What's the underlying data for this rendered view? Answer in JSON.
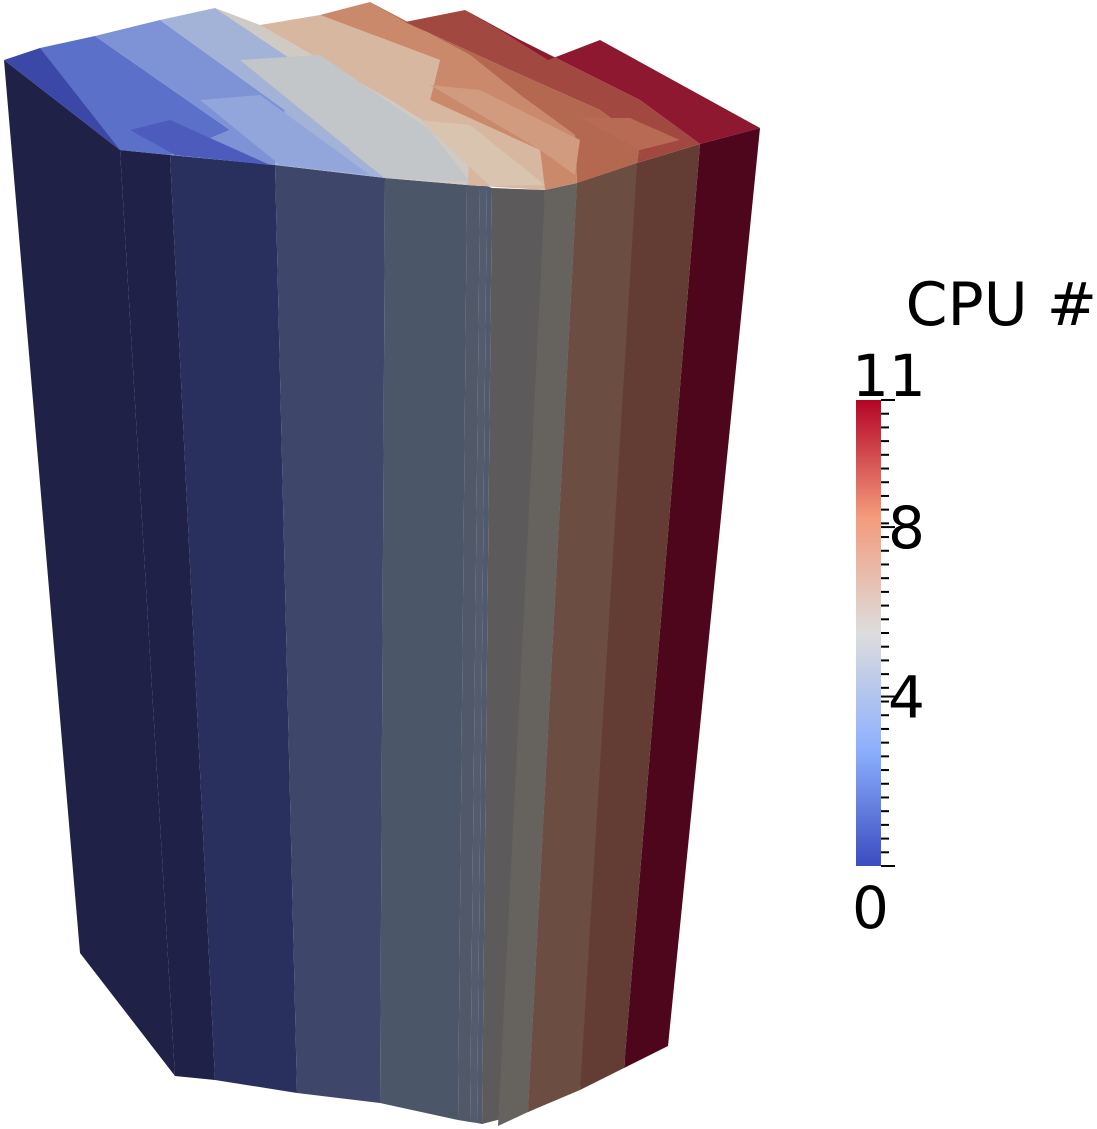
{
  "colorbar": {
    "title": "CPU #",
    "range": [
      0,
      11
    ],
    "tick_labels": [
      {
        "value": 11,
        "text": "11"
      },
      {
        "value": 8,
        "text": "8"
      },
      {
        "value": 4,
        "text": "4"
      },
      {
        "value": 0,
        "text": "0"
      }
    ],
    "minor_tick_count": 34,
    "colormap": [
      "#3b4cc0",
      "#8db0fe",
      "#dddddd",
      "#f49a7b",
      "#b40426"
    ]
  },
  "partition_colors": [
    "#3b4cc0",
    "#5673d8",
    "#7396e9",
    "#92b1f6",
    "#b0c8f8",
    "#ccd5e5",
    "#e2cdbb",
    "#eeb89b",
    "#e39a7a",
    "#c96a52",
    "#a73c34",
    "#8d0b29"
  ]
}
